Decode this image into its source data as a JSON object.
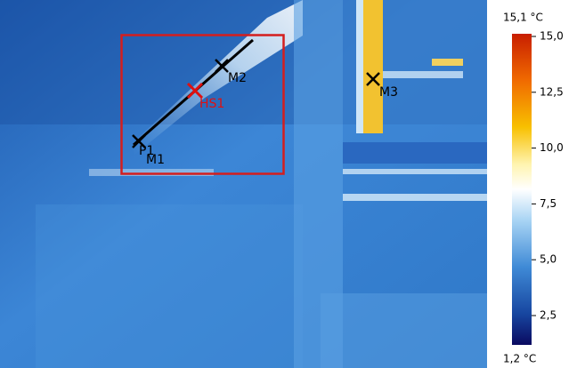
{
  "image": {
    "markers": {
      "m1": "M1",
      "p1": "P1",
      "m2": "M2",
      "m3": "M3",
      "hs1": "HS1"
    }
  },
  "scale": {
    "max_label": "15,1 °C",
    "min_label": "1,2 °C",
    "ticks": [
      "15,0",
      "12,5",
      "10,0",
      "7,5",
      "5,0",
      "2,5"
    ]
  }
}
